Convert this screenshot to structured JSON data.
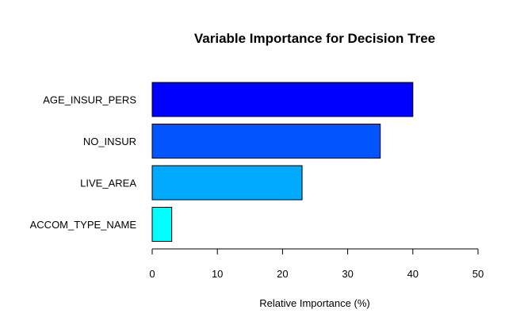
{
  "chart_data": {
    "type": "bar",
    "orientation": "horizontal",
    "title": "Variable Importance for Decision Tree",
    "xlabel": "Relative Importance (%)",
    "ylabel": "",
    "categories": [
      "AGE_INSUR_PERS",
      "NO_INSUR",
      "LIVE_AREA",
      "ACCOM_TYPE_NAME"
    ],
    "values": [
      40,
      35,
      23,
      3
    ],
    "colors": [
      "#0000ff",
      "#0055ff",
      "#00aaff",
      "#00ffff"
    ],
    "xlim": [
      0,
      50
    ],
    "xticks": [
      0,
      10,
      20,
      30,
      40,
      50
    ],
    "grid": false,
    "legend": "none"
  }
}
